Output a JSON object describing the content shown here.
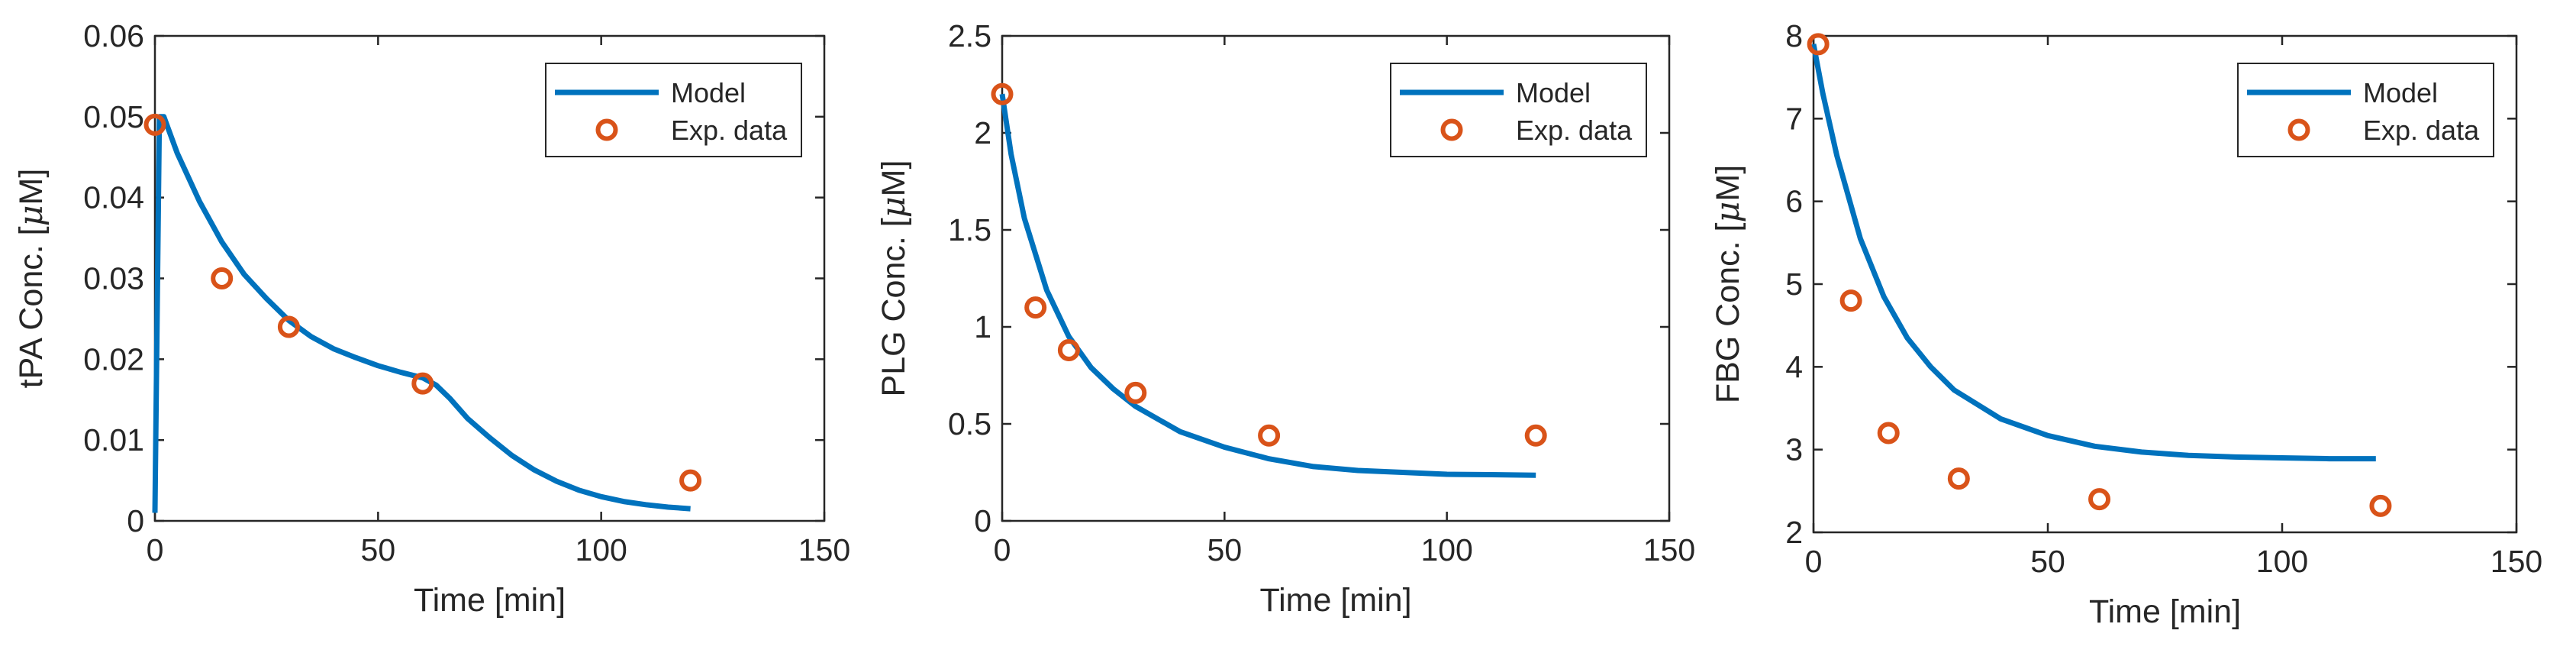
{
  "model_color": "#0072BD",
  "data_color": "#D95319",
  "chart_data": [
    {
      "type": "line",
      "xlabel": "Time [min]",
      "ylabel_main": "tPA Conc. [",
      "ylabel_unit": "μ",
      "ylabel_tail": "M]",
      "xlim": [
        0,
        150
      ],
      "ylim": [
        0,
        0.06
      ],
      "xticks": [
        0,
        50,
        100,
        150
      ],
      "xtick_labels": [
        "0",
        "50",
        "100",
        "150"
      ],
      "yticks": [
        0,
        0.01,
        0.02,
        0.03,
        0.04,
        0.05,
        0.06
      ],
      "ytick_labels": [
        "0",
        "0.01",
        "0.02",
        "0.03",
        "0.04",
        "0.05",
        "0.06"
      ],
      "legend": {
        "position": "top-right",
        "model_label": "Model",
        "data_label": "Exp. data"
      },
      "model": {
        "name": "Model",
        "x": [
          0,
          1,
          2,
          5,
          10,
          15,
          20,
          25,
          30,
          35,
          40,
          45,
          50,
          55,
          60,
          63,
          66,
          70,
          75,
          80,
          85,
          90,
          95,
          100,
          105,
          110,
          115,
          120
        ],
        "y": [
          0.001,
          0.05,
          0.05,
          0.0455,
          0.0395,
          0.0345,
          0.0305,
          0.0275,
          0.0248,
          0.0228,
          0.0213,
          0.0202,
          0.0192,
          0.0184,
          0.0177,
          0.0168,
          0.0152,
          0.0127,
          0.0103,
          0.0081,
          0.0063,
          0.0049,
          0.0038,
          0.003,
          0.0024,
          0.002,
          0.0017,
          0.0015
        ]
      },
      "data": {
        "name": "Exp. data",
        "x": [
          0,
          15,
          30,
          60,
          120
        ],
        "y": [
          0.049,
          0.03,
          0.024,
          0.017,
          0.005
        ]
      }
    },
    {
      "type": "line",
      "xlabel": "Time [min]",
      "ylabel_main": "PLG Conc. [",
      "ylabel_unit": "μ",
      "ylabel_tail": "M]",
      "xlim": [
        0,
        150
      ],
      "ylim": [
        0,
        2.5
      ],
      "xticks": [
        0,
        50,
        100,
        150
      ],
      "xtick_labels": [
        "0",
        "50",
        "100",
        "150"
      ],
      "yticks": [
        0,
        0.5,
        1,
        1.5,
        2,
        2.5
      ],
      "ytick_labels": [
        "0",
        "0.5",
        "1",
        "1.5",
        "2",
        "2.5"
      ],
      "legend": {
        "position": "top-right",
        "model_label": "Model",
        "data_label": "Exp. data"
      },
      "model": {
        "name": "Model",
        "x": [
          0,
          2,
          5,
          10,
          15,
          20,
          25,
          30,
          40,
          50,
          60,
          70,
          80,
          90,
          100,
          110,
          120
        ],
        "y": [
          2.2,
          1.89,
          1.56,
          1.19,
          0.95,
          0.79,
          0.68,
          0.59,
          0.46,
          0.38,
          0.32,
          0.28,
          0.26,
          0.25,
          0.24,
          0.238,
          0.235
        ]
      },
      "data": {
        "name": "Exp. data",
        "x": [
          0,
          7.5,
          15,
          30,
          60,
          120
        ],
        "y": [
          2.2,
          1.1,
          0.88,
          0.66,
          0.44,
          0.44
        ]
      }
    },
    {
      "type": "line",
      "xlabel": "Time [min]",
      "ylabel_main": "FBG Conc. [",
      "ylabel_unit": "μ",
      "ylabel_tail": "M]",
      "xlim": [
        0,
        150
      ],
      "ylim": [
        2,
        8
      ],
      "xticks": [
        0,
        50,
        100,
        150
      ],
      "xtick_labels": [
        "0",
        "50",
        "100",
        "150"
      ],
      "yticks": [
        2,
        3,
        4,
        5,
        6,
        7,
        8
      ],
      "ytick_labels": [
        "2",
        "3",
        "4",
        "5",
        "6",
        "7",
        "8"
      ],
      "legend": {
        "position": "top-right",
        "model_label": "Model",
        "data_label": "Exp. data"
      },
      "model": {
        "name": "Model",
        "x": [
          0,
          2,
          5,
          10,
          15,
          20,
          25,
          30,
          40,
          50,
          60,
          70,
          80,
          90,
          100,
          110,
          120
        ],
        "y": [
          7.9,
          7.3,
          6.55,
          5.55,
          4.85,
          4.35,
          4.0,
          3.72,
          3.37,
          3.17,
          3.04,
          2.97,
          2.93,
          2.91,
          2.9,
          2.89,
          2.89
        ]
      },
      "data": {
        "name": "Exp. data",
        "x": [
          1,
          8,
          16,
          31,
          61,
          121
        ],
        "y": [
          7.9,
          4.8,
          3.2,
          2.65,
          2.4,
          2.32
        ]
      }
    }
  ]
}
